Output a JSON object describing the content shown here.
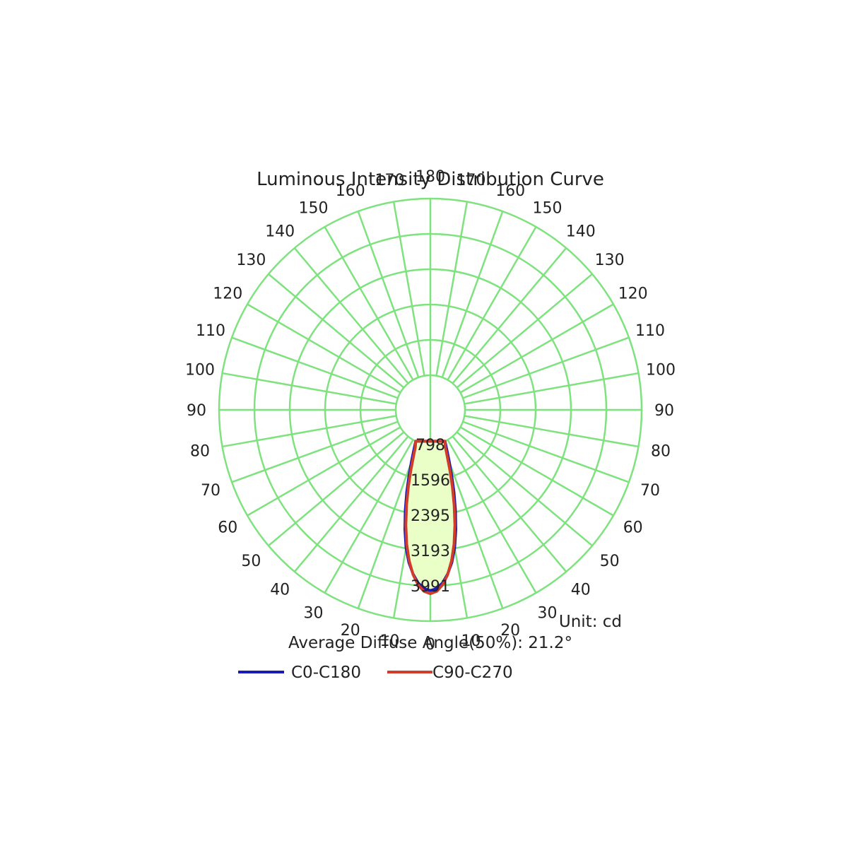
{
  "chart_data": {
    "type": "polar",
    "title": "Luminous Intensity Distribution Curve",
    "unit_label": "Unit: cd",
    "diffuse_angle_label": "Average Diffuse Angle(50%): 21.2°",
    "radial_ticks": [
      "798",
      "1596",
      "2395",
      "3193",
      "3991"
    ],
    "radial_max": 3991,
    "radial_tick_values": [
      798,
      1596,
      2395,
      3193,
      3991
    ],
    "angle_ticks_left": [
      "0",
      "10",
      "20",
      "30",
      "40",
      "50",
      "60",
      "70",
      "80",
      "90",
      "100",
      "110",
      "120",
      "130",
      "140",
      "150",
      "160",
      "170",
      "180"
    ],
    "angle_ticks_right": [
      "10",
      "20",
      "30",
      "40",
      "50",
      "60",
      "70",
      "80",
      "90",
      "100",
      "110",
      "120",
      "130",
      "140",
      "150",
      "160",
      "170"
    ],
    "angle_tick_values_left": [
      0,
      10,
      20,
      30,
      40,
      50,
      60,
      70,
      80,
      90,
      100,
      110,
      120,
      130,
      140,
      150,
      160,
      170,
      180
    ],
    "angle_tick_values_right": [
      10,
      20,
      30,
      40,
      50,
      60,
      70,
      80,
      90,
      100,
      110,
      120,
      130,
      140,
      150,
      160,
      170
    ],
    "grid": true,
    "grid_color": "#7ee27e",
    "fill_color": "#eaffc8",
    "series": [
      {
        "name": "C0-C180",
        "color": "#1a1ab4",
        "angles": [
          0,
          2,
          4,
          6,
          8,
          10,
          12,
          14,
          16,
          18,
          20,
          22,
          25
        ],
        "values": [
          3300,
          3260,
          3140,
          2950,
          2700,
          2380,
          1980,
          1560,
          1150,
          780,
          470,
          230,
          0
        ]
      },
      {
        "name": "C90-C270",
        "color": "#d23c2a",
        "angles": [
          0,
          2,
          4,
          6,
          8,
          10,
          12,
          14,
          16,
          18,
          20,
          22,
          25
        ],
        "values": [
          3370,
          3320,
          3180,
          2960,
          2660,
          2300,
          1880,
          1440,
          1020,
          640,
          330,
          120,
          0
        ]
      }
    ]
  }
}
